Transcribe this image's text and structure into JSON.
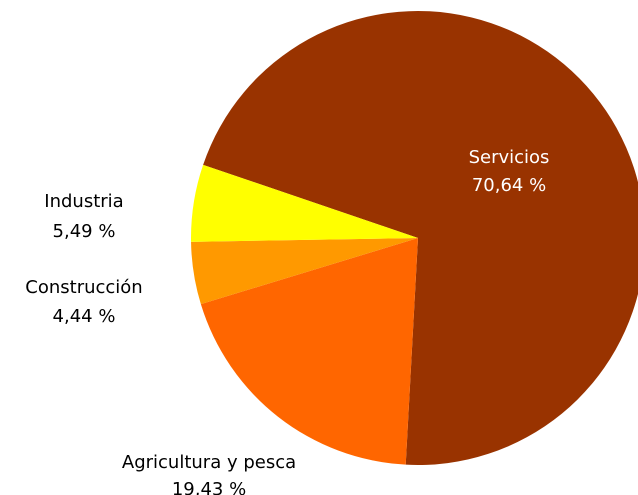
{
  "chart_data": {
    "type": "pie",
    "title": "",
    "legend": "none",
    "slices": [
      {
        "label": "Servicios",
        "value": 70.64,
        "value_text": "70,64 %",
        "color": "#993300",
        "label_color": "#ffffff"
      },
      {
        "label": "Agricultura y pesca",
        "value": 19.43,
        "value_text": "19,43 %",
        "color": "#ff6600",
        "label_color": "#000000"
      },
      {
        "label": "Construcción",
        "value": 4.44,
        "value_text": "4,44 %",
        "color": "#ff9900",
        "label_color": "#000000"
      },
      {
        "label": "Industria",
        "value": 5.49,
        "value_text": "5,49 %",
        "color": "#ffff00",
        "label_color": "#000000"
      }
    ]
  }
}
